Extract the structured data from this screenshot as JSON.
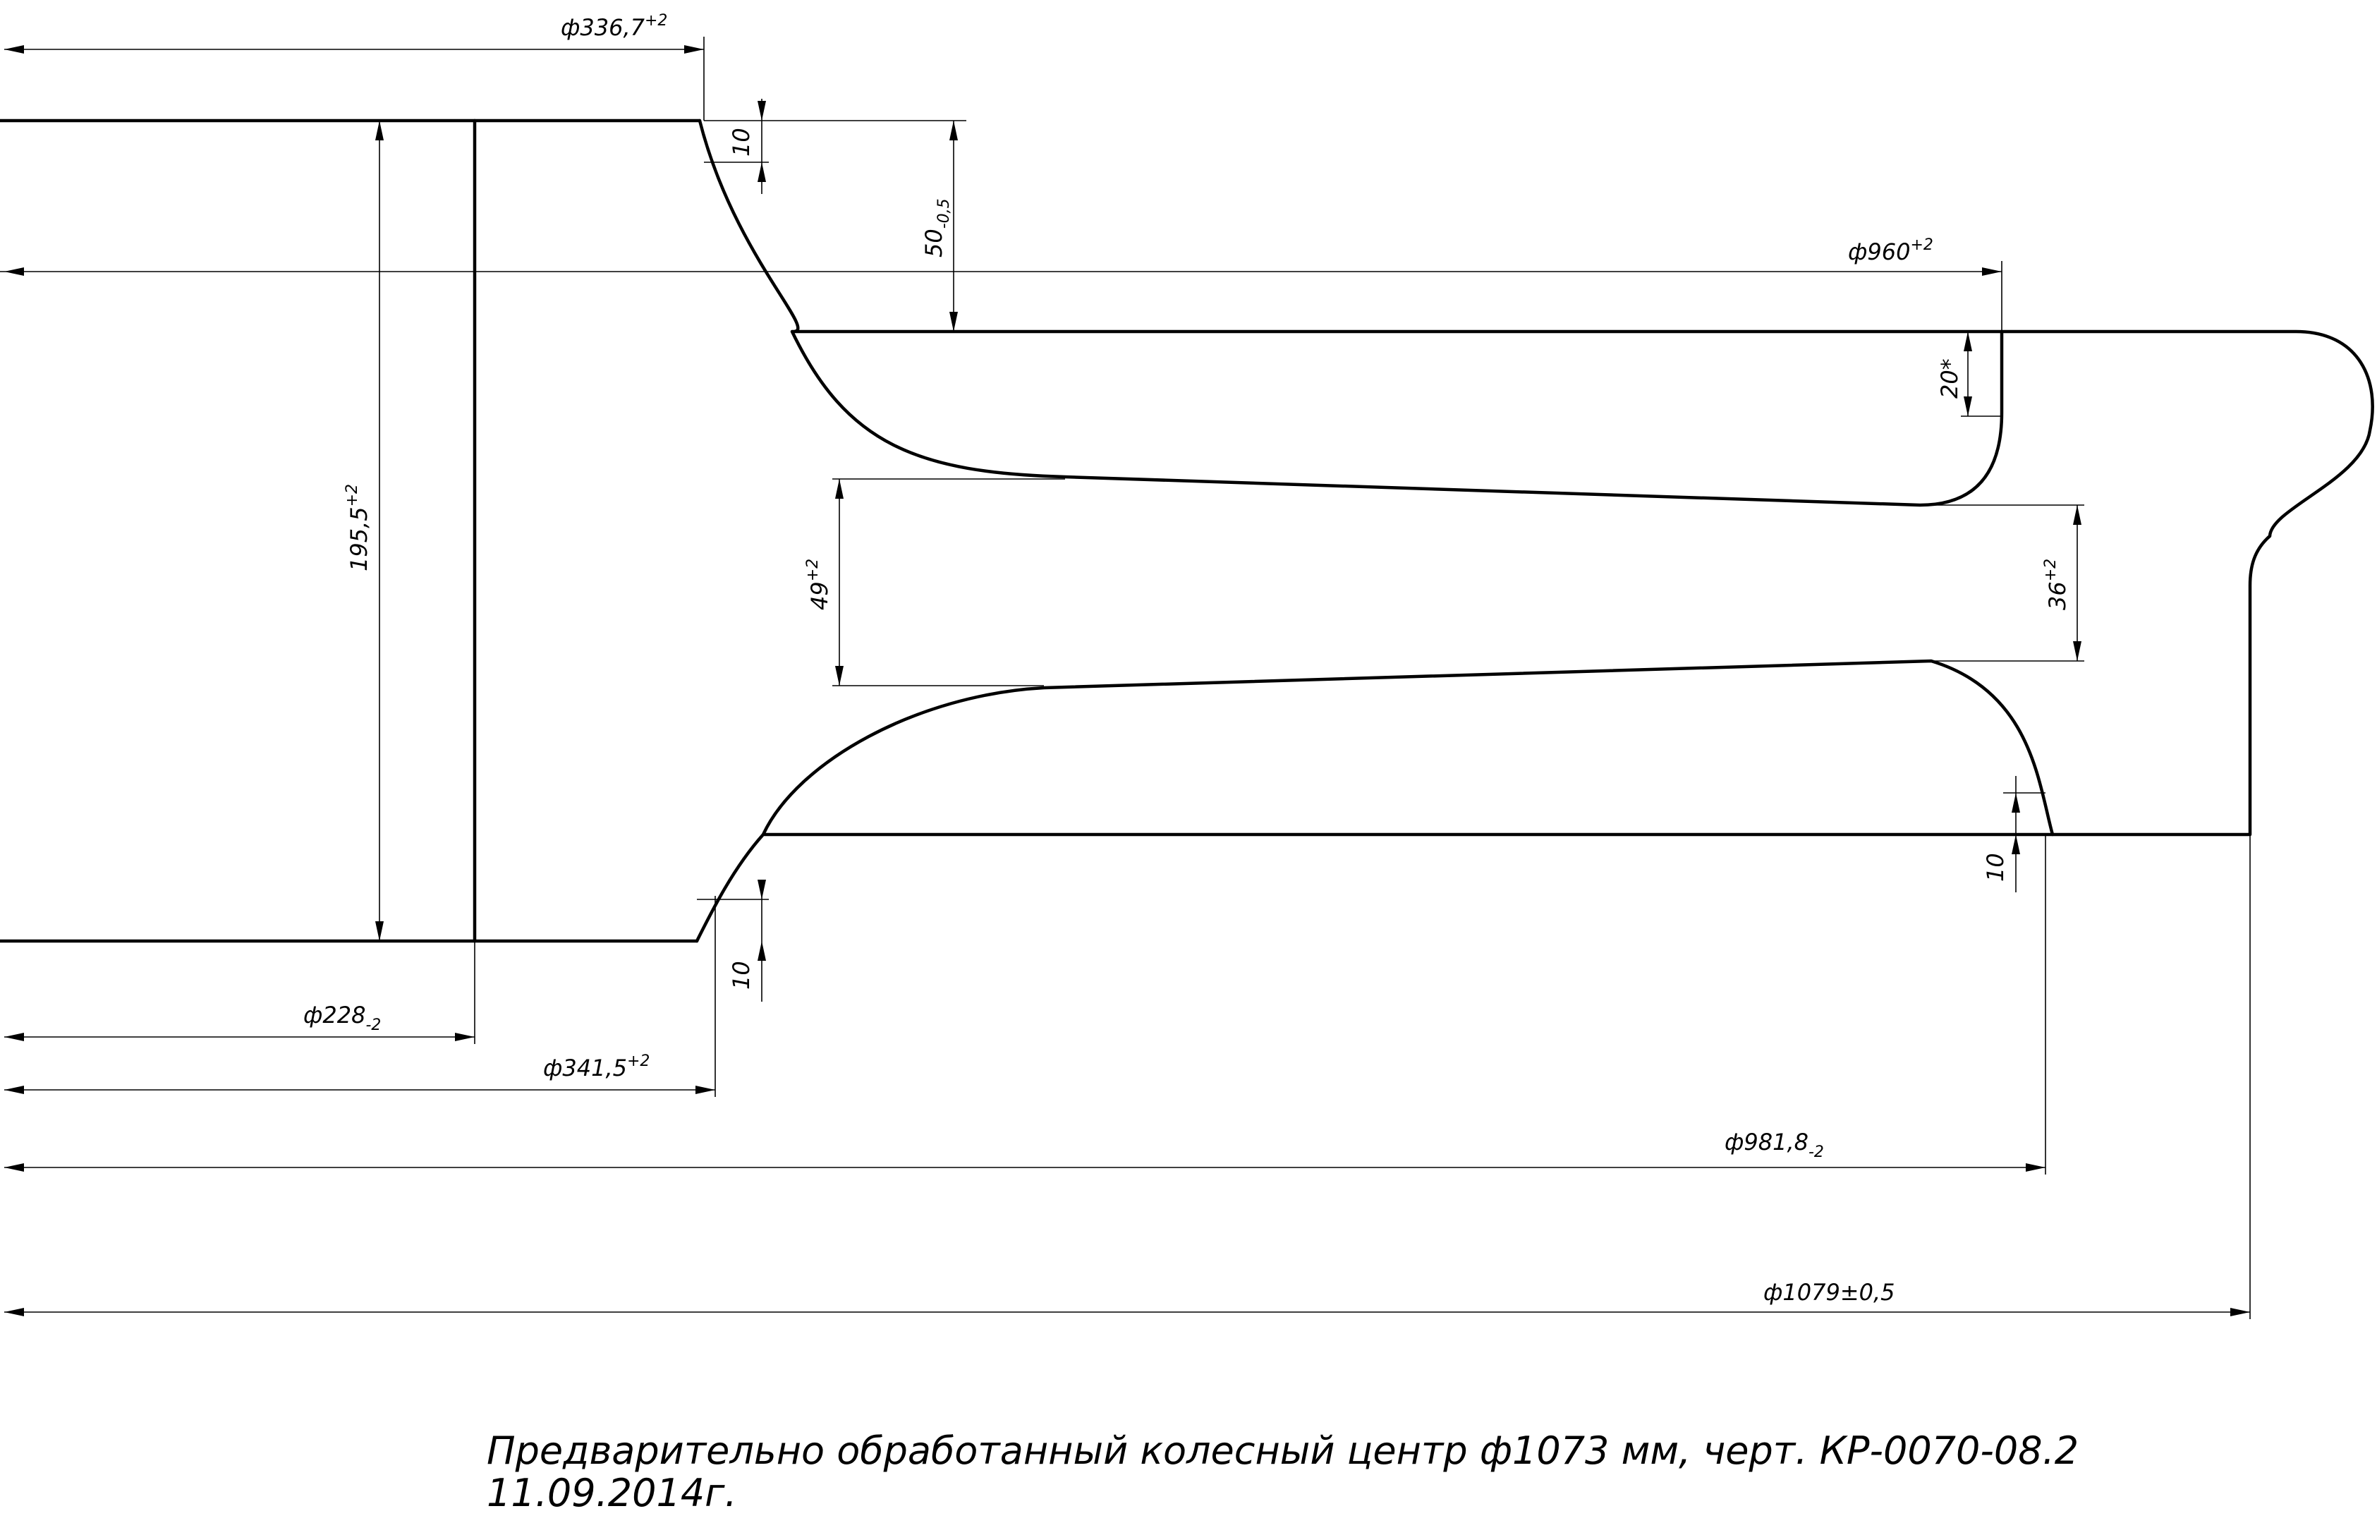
{
  "dimensions": {
    "d336": {
      "base": "ф336,7",
      "tol": "+2"
    },
    "d960": {
      "base": "ф960",
      "tol": "+2"
    },
    "d228": {
      "base": "ф228",
      "tol": "-2"
    },
    "d341": {
      "base": "ф341,5",
      "tol": "+2"
    },
    "d981": {
      "base": "ф981,8",
      "tol": "-2"
    },
    "d1079": {
      "base": "ф1079±0,5",
      "tol": ""
    },
    "h195": {
      "base": "195,5",
      "tol": "+2"
    },
    "w50": {
      "base": "50",
      "tol": "-0,5"
    },
    "t10_top": {
      "base": "10",
      "tol": ""
    },
    "t20": {
      "base": "20*",
      "tol": ""
    },
    "t49": {
      "base": "49",
      "tol": "+2"
    },
    "t36": {
      "base": "36",
      "tol": "+2"
    },
    "t10_bot": {
      "base": "10",
      "tol": ""
    },
    "t10_right": {
      "base": "10",
      "tol": ""
    }
  },
  "caption": {
    "line1": "Предварительно обработанный колесный центр ф1073 мм, черт. КР-0070-08.2",
    "line2": "11.09.2014г."
  }
}
